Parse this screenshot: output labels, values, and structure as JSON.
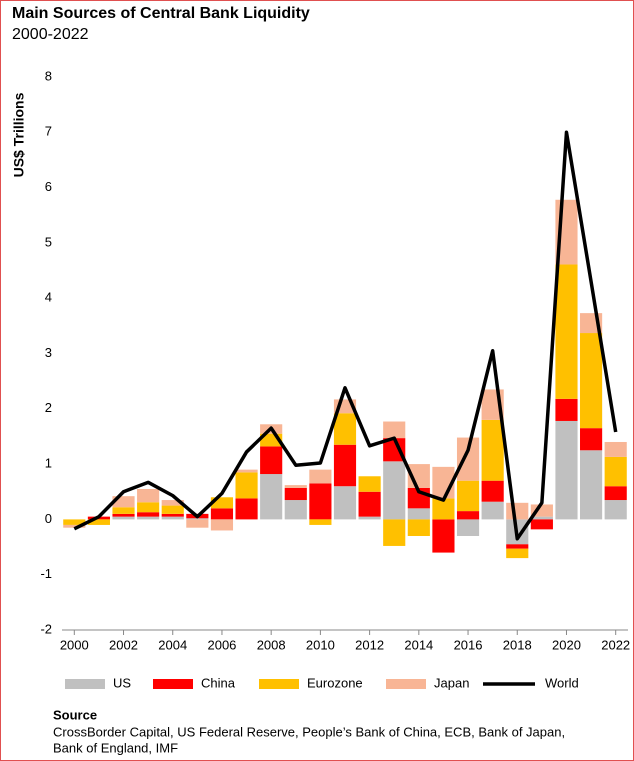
{
  "chart_data": {
    "type": "bar",
    "stacked": true,
    "title": "Main Sources of Central Bank Liquidity",
    "subtitle": "2000-2022",
    "y_label": "US$ Trillions",
    "x": [
      2000,
      2001,
      2002,
      2003,
      2004,
      2005,
      2006,
      2007,
      2008,
      2009,
      2010,
      2011,
      2012,
      2013,
      2014,
      2015,
      2016,
      2017,
      2018,
      2019,
      2020,
      2021,
      2022
    ],
    "xlim": [
      1999.5,
      2022.5
    ],
    "xticks": [
      2000,
      2002,
      2004,
      2006,
      2008,
      2010,
      2012,
      2014,
      2016,
      2018,
      2020,
      2022
    ],
    "ylim": [
      -2,
      8
    ],
    "yticks": [
      -2,
      -1,
      0,
      1,
      2,
      3,
      4,
      5,
      6,
      7,
      8
    ],
    "grid": false,
    "series": [
      {
        "name": "US",
        "color": "#c0c0c0",
        "values": [
          0,
          0,
          0.05,
          0.05,
          0.05,
          0.02,
          0,
          0,
          0.82,
          0.35,
          0,
          0.6,
          0.05,
          1.05,
          0.2,
          0,
          -0.3,
          0.32,
          -0.45,
          0.05,
          1.78,
          1.25,
          0.35
        ]
      },
      {
        "name": "China",
        "color": "#ff0000",
        "values": [
          0,
          0.05,
          0.05,
          0.08,
          0.05,
          0.08,
          0.2,
          0.38,
          0.5,
          0.22,
          0.65,
          0.75,
          0.45,
          0.42,
          0.37,
          -0.6,
          0.15,
          0.38,
          -0.08,
          -0.18,
          0.4,
          0.4,
          0.25
        ]
      },
      {
        "name": "Eurozone",
        "color": "#ffc000",
        "values": [
          -0.1,
          -0.1,
          0.12,
          0.18,
          0.15,
          0,
          0.2,
          0.47,
          0.23,
          0,
          -0.1,
          0.57,
          0.28,
          -0.48,
          -0.3,
          0.38,
          0.55,
          1.1,
          -0.17,
          0,
          2.43,
          1.72,
          0.53
        ]
      },
      {
        "name": "Japan",
        "color": "#f8b595",
        "values": [
          -0.05,
          0,
          0.2,
          0.24,
          0.1,
          -0.15,
          -0.2,
          0.05,
          0.17,
          0.05,
          0.25,
          0.25,
          0,
          0.3,
          0.43,
          0.57,
          0.78,
          0.55,
          0.3,
          0.22,
          1.17,
          0.36,
          0.27
        ]
      },
      {
        "name": "World",
        "color": "#000000",
        "type": "line",
        "values": [
          -0.17,
          0.05,
          0.5,
          0.67,
          0.43,
          0.05,
          0.47,
          1.22,
          1.65,
          0.98,
          1.02,
          2.38,
          1.33,
          1.47,
          0.5,
          0.35,
          1.25,
          3.05,
          -0.35,
          0.3,
          7.0,
          4.3,
          1.58
        ]
      }
    ],
    "source_label": "Source",
    "source": [
      "CrossBorder Capital, US Federal Reserve, People’s Bank of China, ECB, Bank of Japan,",
      "Bank of England, IMF"
    ]
  }
}
